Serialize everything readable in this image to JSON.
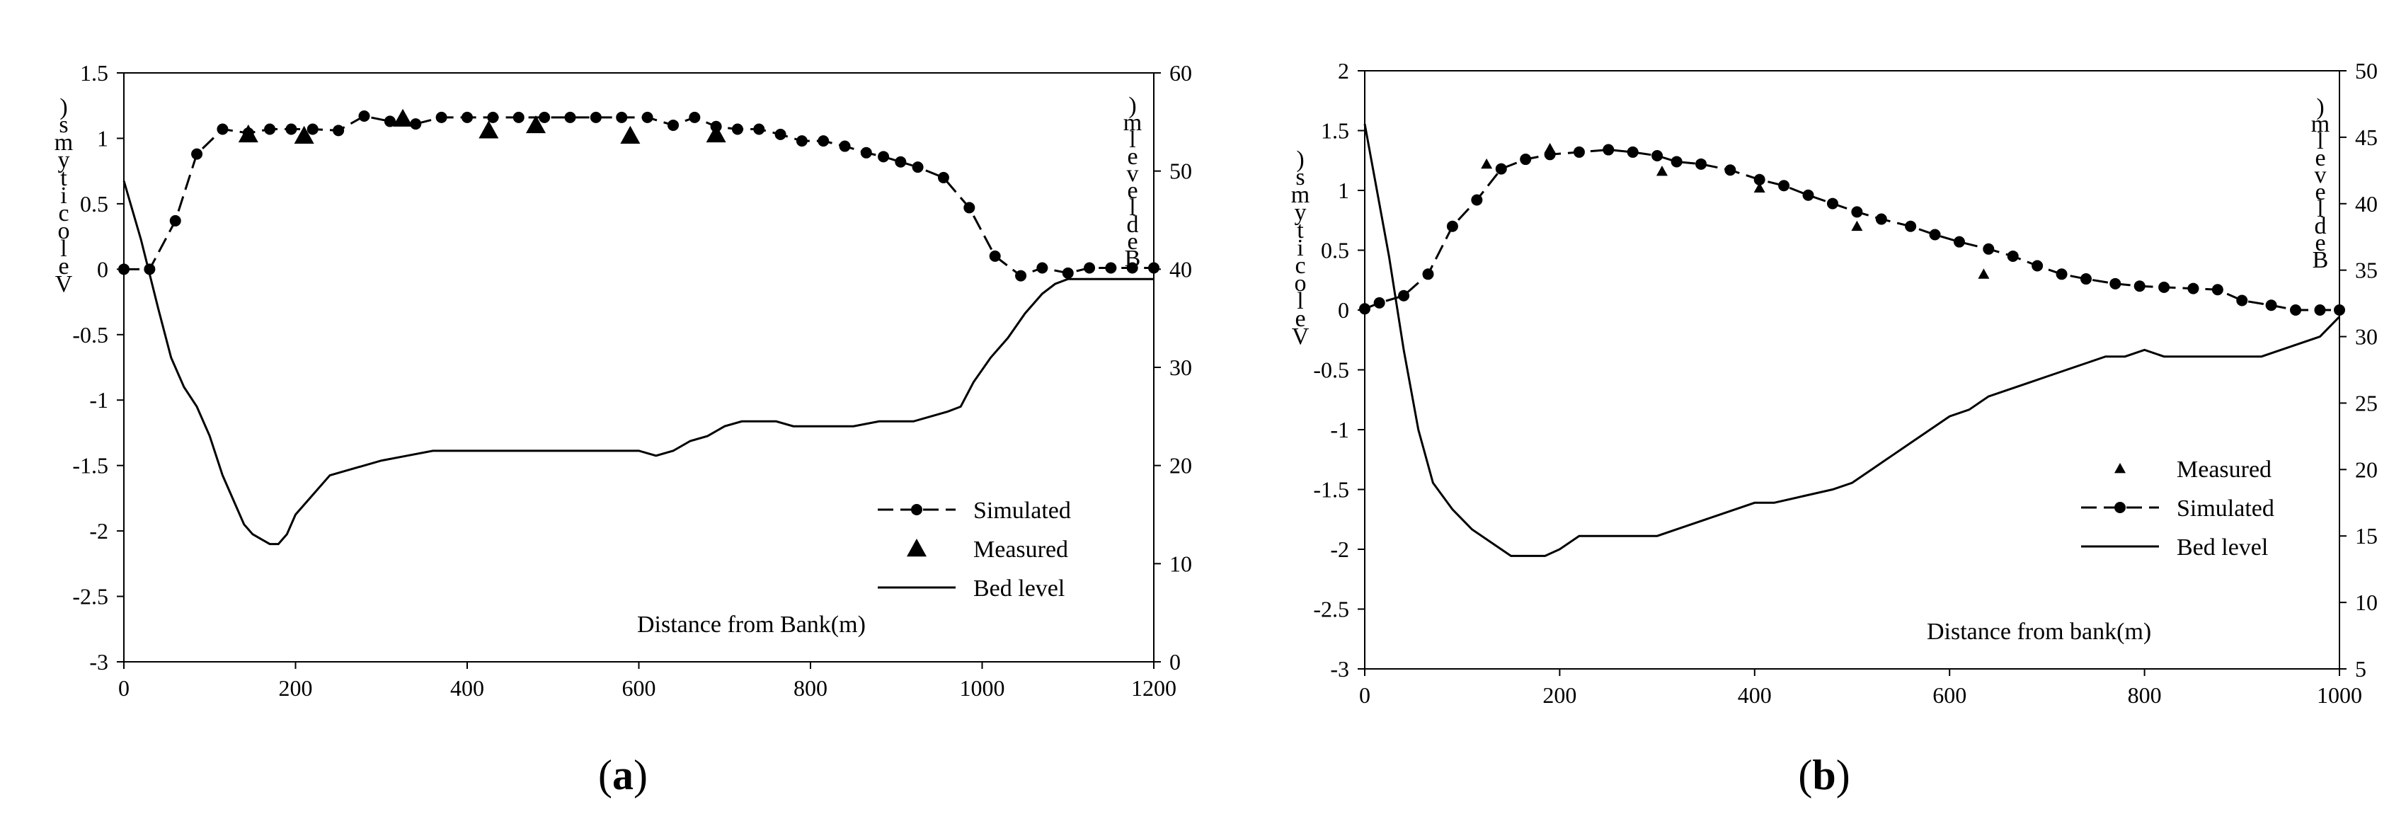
{
  "chart_data": [
    {
      "type": "line",
      "panel_label_open": "(",
      "panel_label_letter": "a",
      "panel_label_close": ")",
      "xlabel": "Distance from Bank(m)",
      "ylabel_left_chars": [
        ")",
        "s",
        "m",
        "y",
        "t",
        "i",
        "c",
        "o",
        "l",
        "e",
        "V"
      ],
      "ylabel_right_chars": [
        ")",
        "m",
        "l",
        "e",
        "v",
        "e",
        "l",
        "d",
        "e",
        "B"
      ],
      "xlim": [
        0,
        1200
      ],
      "ylim_left": [
        -3,
        1.5
      ],
      "ylim_right": [
        0,
        60
      ],
      "x_ticks": [
        "0",
        "200",
        "400",
        "600",
        "800",
        "1000",
        "1200"
      ],
      "y_left_ticks": [
        "1.5",
        "1",
        "0.5",
        "0",
        "-0.5",
        "-1",
        "-1.5",
        "-2",
        "-2.5",
        "-3"
      ],
      "y_right_ticks": [
        "60",
        "50",
        "40",
        "30",
        "20",
        "10",
        "0"
      ],
      "legend": [
        {
          "label": "Simulated",
          "style": "dash-circle"
        },
        {
          "label": "Measured",
          "style": "triangle"
        },
        {
          "label": "Bed level",
          "style": "solid"
        }
      ],
      "series": [
        {
          "name": "Simulated",
          "axis": "left",
          "x": [
            0,
            30,
            60,
            85,
            115,
            145,
            170,
            195,
            220,
            250,
            280,
            310,
            340,
            370,
            400,
            430,
            460,
            490,
            520,
            550,
            580,
            610,
            640,
            665,
            690,
            715,
            740,
            765,
            790,
            815,
            840,
            865,
            885,
            905,
            925,
            955,
            985,
            1015,
            1045,
            1070,
            1100,
            1125,
            1150,
            1175,
            1200
          ],
          "y": [
            0.0,
            0.0,
            0.37,
            0.88,
            1.07,
            1.04,
            1.07,
            1.07,
            1.07,
            1.06,
            1.17,
            1.13,
            1.11,
            1.16,
            1.16,
            1.16,
            1.16,
            1.16,
            1.16,
            1.16,
            1.16,
            1.16,
            1.1,
            1.16,
            1.09,
            1.07,
            1.07,
            1.03,
            0.98,
            0.98,
            0.94,
            0.89,
            0.86,
            0.82,
            0.78,
            0.7,
            0.47,
            0.1,
            -0.05,
            0.01,
            -0.03,
            0.01,
            0.01,
            0.01,
            0.01
          ]
        },
        {
          "name": "Measured",
          "axis": "left",
          "x": [
            145,
            210,
            325,
            425,
            480,
            590,
            690
          ],
          "y": [
            1.03,
            1.02,
            1.15,
            1.06,
            1.1,
            1.02,
            1.03
          ]
        },
        {
          "name": "Bed level",
          "axis": "right",
          "x": [
            0,
            20,
            40,
            55,
            70,
            85,
            100,
            115,
            130,
            140,
            150,
            160,
            170,
            180,
            190,
            200,
            220,
            240,
            260,
            280,
            300,
            330,
            360,
            400,
            450,
            500,
            550,
            600,
            620,
            640,
            660,
            680,
            700,
            720,
            740,
            760,
            780,
            800,
            820,
            850,
            880,
            920,
            960,
            975,
            990,
            1010,
            1030,
            1050,
            1070,
            1085,
            1100,
            1200
          ],
          "y": [
            49,
            43,
            36,
            31,
            28,
            26,
            23,
            19,
            16,
            14,
            13,
            12.5,
            12,
            12,
            13,
            15,
            17,
            19,
            19.5,
            20,
            20.5,
            21,
            21.5,
            21.5,
            21.5,
            21.5,
            21.5,
            21.5,
            21,
            21.5,
            22.5,
            23,
            24,
            24.5,
            24.5,
            24.5,
            24,
            24,
            24,
            24,
            24.5,
            24.5,
            25.5,
            26,
            28.5,
            31,
            33,
            35.5,
            37.5,
            38.5,
            39,
            39
          ]
        }
      ]
    },
    {
      "type": "line",
      "panel_label_open": "(",
      "panel_label_letter": "b",
      "panel_label_close": ")",
      "xlabel": "Distance from bank(m)",
      "ylabel_left_chars": [
        ")",
        "s",
        "m",
        "y",
        "t",
        "i",
        "c",
        "o",
        "l",
        "e",
        "V"
      ],
      "ylabel_right_chars": [
        ")",
        "m",
        "l",
        "e",
        "v",
        "e",
        "l",
        "d",
        "e",
        "B"
      ],
      "xlim": [
        0,
        1000
      ],
      "ylim_left": [
        -3,
        2
      ],
      "ylim_right": [
        5,
        50
      ],
      "x_ticks": [
        "0",
        "200",
        "400",
        "600",
        "800",
        "1000"
      ],
      "y_left_ticks": [
        "2",
        "1.5",
        "1",
        "0.5",
        "0",
        "-0.5",
        "-1",
        "-1.5",
        "-2",
        "-2.5",
        "-3"
      ],
      "y_right_ticks": [
        "50",
        "45",
        "40",
        "35",
        "30",
        "25",
        "20",
        "15",
        "10",
        "5"
      ],
      "legend": [
        {
          "label": "Measured",
          "style": "triangle"
        },
        {
          "label": "Simulated",
          "style": "dash-circle"
        },
        {
          "label": "Bed level",
          "style": "solid"
        }
      ],
      "series": [
        {
          "name": "Measured",
          "axis": "left",
          "x": [
            125,
            190,
            305,
            405,
            505,
            635
          ],
          "y": [
            1.22,
            1.35,
            1.16,
            1.02,
            0.7,
            0.3
          ]
        },
        {
          "name": "Simulated",
          "axis": "left",
          "x": [
            0,
            15,
            40,
            65,
            90,
            115,
            140,
            165,
            190,
            220,
            250,
            275,
            300,
            320,
            345,
            375,
            405,
            430,
            455,
            480,
            505,
            530,
            560,
            585,
            610,
            640,
            665,
            690,
            715,
            740,
            770,
            795,
            820,
            850,
            875,
            900,
            930,
            955,
            980,
            1000
          ],
          "y": [
            0.01,
            0.06,
            0.12,
            0.3,
            0.7,
            0.92,
            1.18,
            1.26,
            1.3,
            1.32,
            1.34,
            1.32,
            1.29,
            1.24,
            1.22,
            1.17,
            1.09,
            1.04,
            0.96,
            0.89,
            0.82,
            0.76,
            0.7,
            0.63,
            0.57,
            0.51,
            0.45,
            0.37,
            0.3,
            0.26,
            0.22,
            0.2,
            0.19,
            0.18,
            0.17,
            0.08,
            0.04,
            0.0,
            0.0,
            0.0
          ]
        },
        {
          "name": "Bed level",
          "axis": "right",
          "x": [
            0,
            10,
            25,
            40,
            55,
            70,
            90,
            110,
            130,
            150,
            165,
            185,
            200,
            220,
            240,
            260,
            280,
            300,
            320,
            340,
            360,
            380,
            400,
            420,
            450,
            480,
            500,
            520,
            540,
            560,
            580,
            600,
            620,
            640,
            660,
            680,
            700,
            720,
            740,
            760,
            780,
            800,
            820,
            840,
            860,
            880,
            900,
            920,
            940,
            960,
            980,
            1000
          ],
          "y": [
            46,
            42,
            36,
            29,
            23,
            19,
            17,
            15.5,
            14.5,
            13.5,
            13.5,
            13.5,
            14,
            15,
            15,
            15,
            15,
            15,
            15.5,
            16,
            16.5,
            17,
            17.5,
            17.5,
            18,
            18.5,
            19,
            20,
            21,
            22,
            23,
            24,
            24.5,
            25.5,
            26,
            26.5,
            27,
            27.5,
            28,
            28.5,
            28.5,
            29,
            28.5,
            28.5,
            28.5,
            28.5,
            28.5,
            28.5,
            29,
            29.5,
            30,
            31.5
          ]
        }
      ]
    }
  ]
}
